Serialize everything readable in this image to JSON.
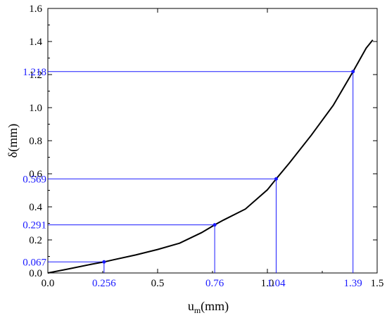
{
  "chart_data": {
    "type": "line",
    "xlabel": "u",
    "xlabel_sub": "m",
    "xlabel_unit": "(mm)",
    "ylabel": "δ(mm)",
    "xlim": [
      0.0,
      1.5
    ],
    "ylim": [
      0.0,
      1.6
    ],
    "x_ticks": [
      "0.0",
      "0.5",
      "1.0",
      "1.5"
    ],
    "y_ticks": [
      "0.0",
      "0.2",
      "0.4",
      "0.6",
      "0.8",
      "1.0",
      "1.2",
      "1.4",
      "1.6"
    ],
    "grid": false,
    "series": [
      {
        "x": [
          0.0,
          0.1,
          0.2,
          0.256,
          0.3,
          0.4,
          0.5,
          0.6,
          0.7,
          0.76,
          0.8,
          0.9,
          1.0,
          1.04,
          1.1,
          1.2,
          1.3,
          1.39,
          1.45,
          1.48
        ],
        "y": [
          0.0,
          0.026,
          0.053,
          0.067,
          0.08,
          0.109,
          0.142,
          0.18,
          0.244,
          0.291,
          0.32,
          0.387,
          0.503,
          0.569,
          0.665,
          0.833,
          1.014,
          1.218,
          1.36,
          1.41
        ],
        "color": "#000000"
      }
    ],
    "markers": [
      {
        "x": 0.256,
        "y": 0.067,
        "x_label": "0.256",
        "y_label": "0.067"
      },
      {
        "x": 0.76,
        "y": 0.291,
        "x_label": "0.76",
        "y_label": "0.291"
      },
      {
        "x": 1.04,
        "y": 0.569,
        "x_label": "1.04",
        "y_label": "0.569"
      },
      {
        "x": 1.39,
        "y": 1.218,
        "x_label": "1.39",
        "y_label": "1.218"
      }
    ],
    "marker_color": "#1a1aff"
  }
}
